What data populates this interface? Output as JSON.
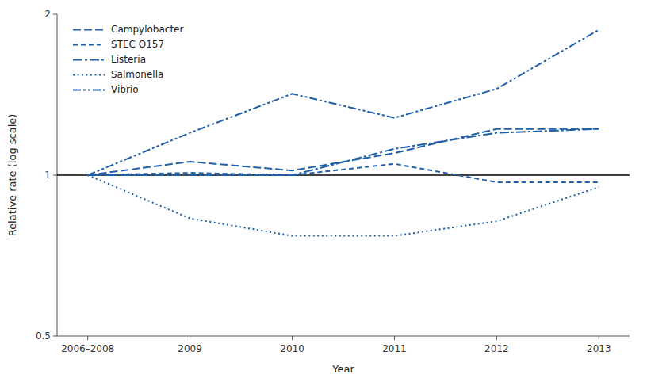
{
  "chart_data": {
    "type": "line",
    "categories": [
      "2006–2008",
      "2009",
      "2010",
      "2011",
      "2012",
      "2013"
    ],
    "series": [
      {
        "name": "Campylobacter",
        "color": "#2060a8",
        "line_style": "dashed",
        "values": [
          1.0,
          1.06,
          1.02,
          1.1,
          1.22,
          1.22
        ]
      },
      {
        "name": "STEC O157",
        "color": "#2060a8",
        "line_style": "shortdash",
        "values": [
          1.0,
          1.01,
          1.0,
          1.05,
          0.97,
          0.97
        ]
      },
      {
        "name": "Listeria",
        "color": "#2060a8",
        "line_style": "dashdot",
        "values": [
          1.0,
          1.0,
          1.0,
          1.12,
          1.2,
          1.22
        ]
      },
      {
        "name": "Salmonella",
        "color": "#2060a8",
        "line_style": "dotted",
        "values": [
          1.0,
          0.83,
          0.77,
          0.77,
          0.82,
          0.95
        ]
      },
      {
        "name": "Vibrio",
        "color": "#2060a8",
        "line_style": "dashdotdot",
        "values": [
          1.0,
          1.2,
          1.42,
          1.28,
          1.45,
          1.87
        ]
      }
    ],
    "reference_line": 1.0,
    "xlabel": "Year",
    "ylabel": "Relative rate (log scale)",
    "log": "y",
    "ylim": [
      0.5,
      2.0
    ],
    "yticks": [
      0.5,
      1,
      2
    ],
    "legend": "upper left",
    "grid": false
  }
}
